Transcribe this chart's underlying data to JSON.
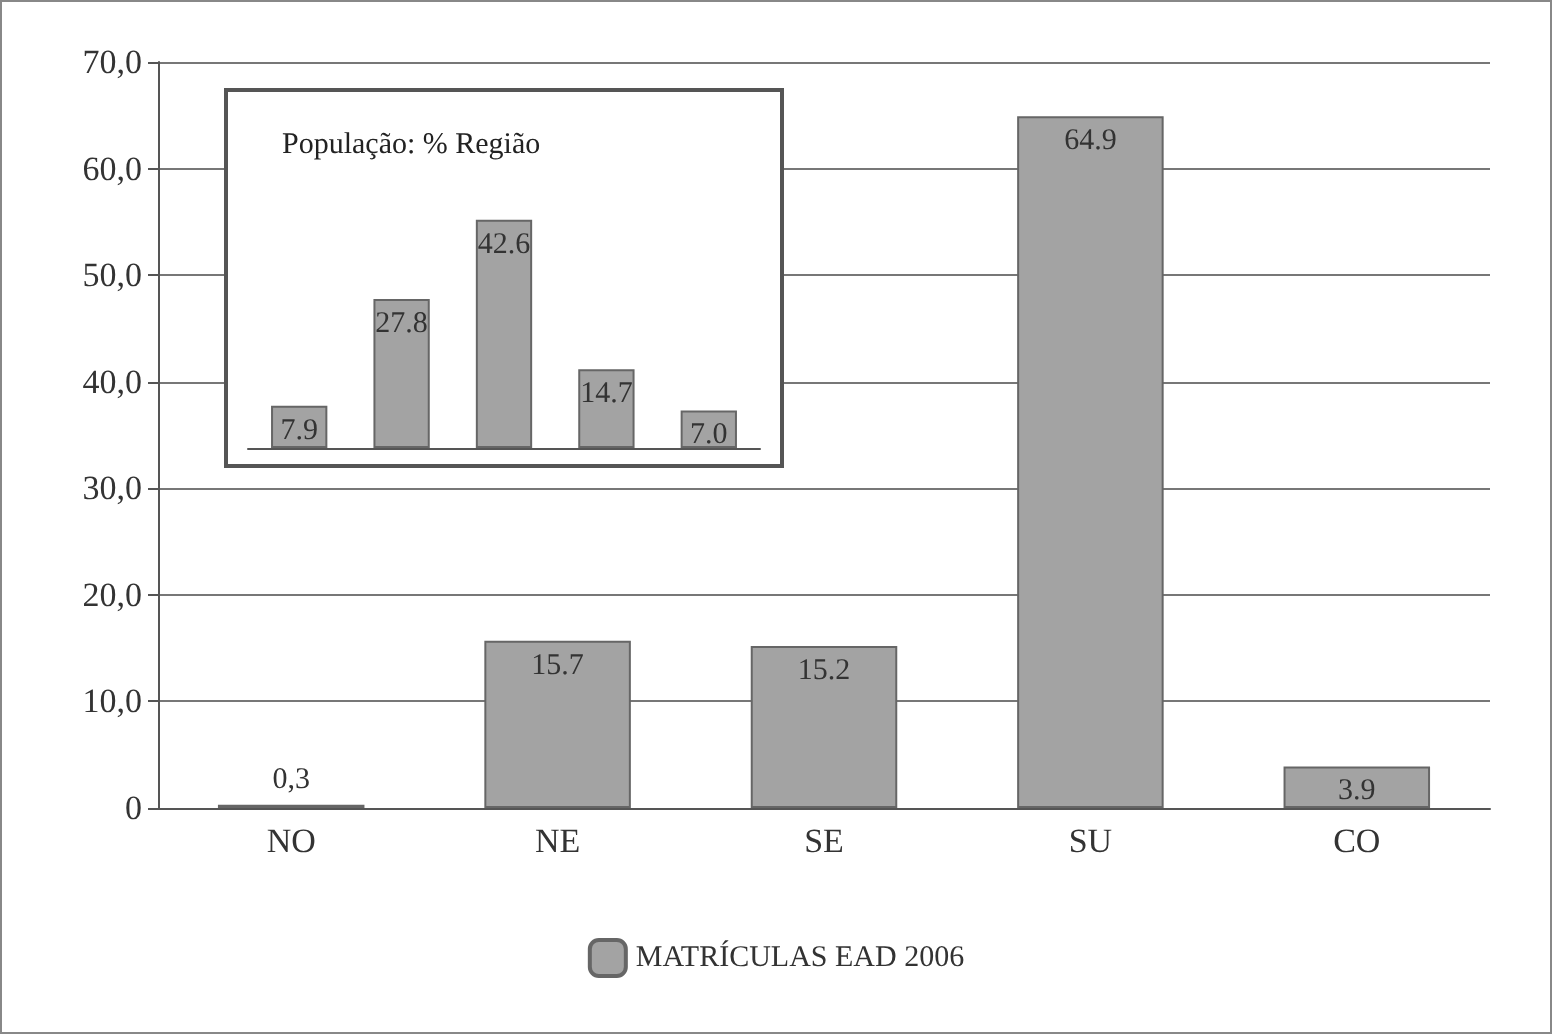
{
  "chart_data": [
    {
      "type": "bar",
      "categories": [
        "NO",
        "NE",
        "SE",
        "SU",
        "CO"
      ],
      "series": [
        {
          "name": "MATRÍCULAS EAD 2006",
          "color": "#a3a3a3",
          "values": [
            0.3,
            15.7,
            15.2,
            64.9,
            3.9
          ],
          "value_labels": [
            "0,3",
            "15.7",
            "15.2",
            "64.9",
            "3.9"
          ]
        }
      ],
      "ylim": [
        0,
        70
      ],
      "yticks": [
        {
          "value": 0,
          "label": "0"
        },
        {
          "value": 10,
          "label": "10,0"
        },
        {
          "value": 20,
          "label": "20,0"
        },
        {
          "value": 30,
          "label": "30,0"
        },
        {
          "value": 40,
          "label": "40,0"
        },
        {
          "value": 50,
          "label": "50,0"
        },
        {
          "value": 60,
          "label": "60,0"
        },
        {
          "value": 70,
          "label": "70,0"
        }
      ],
      "grid": "y",
      "legend": "bottom"
    },
    {
      "type": "bar",
      "title": "População: % Região",
      "categories": [
        null,
        null,
        null,
        null,
        null
      ],
      "series": [
        {
          "color": "#a3a3a3",
          "values": [
            7.9,
            27.8,
            42.6,
            14.7,
            7.0
          ],
          "value_labels": [
            "7.9",
            "27.8",
            "42.6",
            "14.7",
            "7.0"
          ]
        }
      ]
    }
  ]
}
